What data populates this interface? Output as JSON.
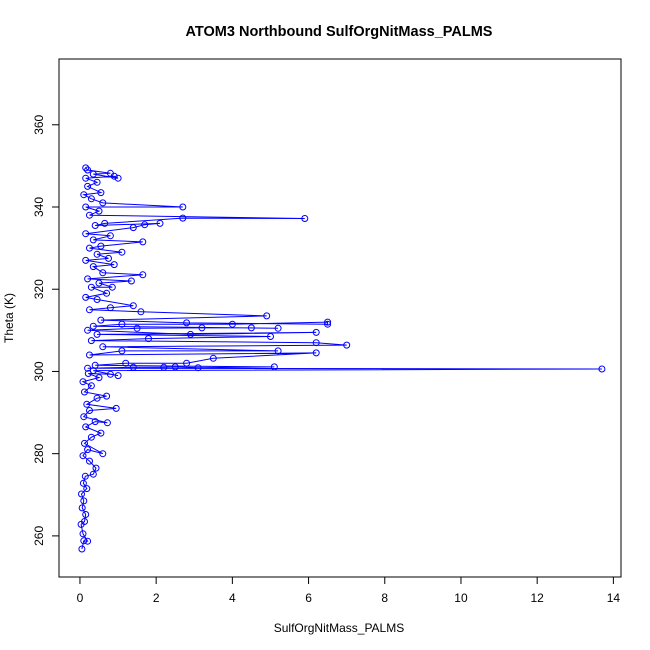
{
  "chart_data": {
    "type": "line",
    "title": "ATOM3 Northbound SulfOrgNitMass_PALMS",
    "xlabel": "SulfOrgNitMass_PALMS",
    "ylabel": "Theta (K)",
    "xlim": [
      -0.55,
      14.2
    ],
    "ylim": [
      250,
      376
    ],
    "x_ticks": [
      0,
      2,
      4,
      6,
      8,
      10,
      12,
      14
    ],
    "y_ticks": [
      260,
      280,
      300,
      320,
      340,
      360
    ],
    "grid": false,
    "legend": "none",
    "series_color": "#0000ff",
    "marker": "open-circle",
    "series": [
      {
        "points": [
          [
            0.05,
            256.8
          ],
          [
            0.1,
            258.8
          ],
          [
            0.2,
            258.7
          ],
          [
            0.08,
            260.5
          ],
          [
            0.03,
            262.8
          ],
          [
            0.12,
            263.5
          ],
          [
            0.15,
            265.2
          ],
          [
            0.06,
            266.8
          ],
          [
            0.1,
            268.5
          ],
          [
            0.04,
            270.2
          ],
          [
            0.18,
            271.5
          ],
          [
            0.09,
            272.8
          ],
          [
            0.14,
            274.5
          ],
          [
            0.35,
            275.0
          ],
          [
            0.42,
            276.5
          ],
          [
            0.25,
            278.2
          ],
          [
            0.08,
            279.5
          ],
          [
            0.2,
            281.0
          ],
          [
            0.6,
            280.0
          ],
          [
            0.12,
            282.5
          ],
          [
            0.3,
            284.0
          ],
          [
            0.55,
            285.0
          ],
          [
            0.15,
            286.5
          ],
          [
            0.4,
            287.8
          ],
          [
            0.72,
            287.5
          ],
          [
            0.1,
            289.0
          ],
          [
            0.25,
            290.5
          ],
          [
            0.95,
            291.0
          ],
          [
            0.18,
            292.0
          ],
          [
            0.45,
            293.5
          ],
          [
            0.7,
            294.0
          ],
          [
            0.12,
            295.0
          ],
          [
            0.3,
            296.5
          ],
          [
            0.08,
            297.5
          ],
          [
            0.5,
            298.5
          ],
          [
            0.22,
            299.5
          ],
          [
            0.8,
            299.3
          ],
          [
            1.0,
            299.0
          ],
          [
            0.35,
            300.2
          ],
          [
            13.7,
            300.6
          ],
          [
            0.2,
            300.8
          ],
          [
            1.4,
            301.0
          ],
          [
            2.2,
            301.0
          ],
          [
            2.5,
            301.1
          ],
          [
            3.1,
            300.9
          ],
          [
            5.1,
            301.1
          ],
          [
            0.4,
            301.5
          ],
          [
            1.2,
            302.0
          ],
          [
            2.8,
            302.0
          ],
          [
            3.5,
            303.2
          ],
          [
            6.2,
            304.5
          ],
          [
            0.25,
            304.0
          ],
          [
            1.1,
            305.0
          ],
          [
            5.2,
            305.0
          ],
          [
            0.6,
            306.0
          ],
          [
            7.0,
            306.4
          ],
          [
            6.2,
            307.0
          ],
          [
            0.3,
            307.5
          ],
          [
            1.8,
            308.0
          ],
          [
            5.0,
            308.5
          ],
          [
            0.45,
            309.0
          ],
          [
            6.2,
            309.5
          ],
          [
            2.9,
            309.0
          ],
          [
            0.2,
            310.0
          ],
          [
            1.5,
            310.5
          ],
          [
            3.2,
            310.6
          ],
          [
            4.5,
            310.6
          ],
          [
            5.2,
            310.5
          ],
          [
            0.35,
            311.0
          ],
          [
            1.1,
            311.5
          ],
          [
            4.0,
            311.5
          ],
          [
            6.5,
            312.0
          ],
          [
            6.5,
            311.5
          ],
          [
            2.8,
            311.8
          ],
          [
            0.55,
            312.5
          ],
          [
            4.9,
            313.5
          ],
          [
            1.6,
            314.5
          ],
          [
            0.25,
            315.0
          ],
          [
            0.8,
            315.5
          ],
          [
            1.4,
            316.0
          ],
          [
            0.45,
            317.5
          ],
          [
            0.15,
            318.0
          ],
          [
            0.7,
            319.0
          ],
          [
            0.3,
            320.5
          ],
          [
            0.85,
            320.5
          ],
          [
            0.5,
            321.5
          ],
          [
            1.35,
            322.0
          ],
          [
            0.2,
            322.5
          ],
          [
            1.65,
            323.5
          ],
          [
            0.6,
            324.0
          ],
          [
            0.35,
            325.5
          ],
          [
            0.9,
            326.0
          ],
          [
            0.15,
            327.0
          ],
          [
            0.75,
            327.5
          ],
          [
            0.45,
            328.5
          ],
          [
            1.1,
            329.0
          ],
          [
            0.25,
            330.0
          ],
          [
            0.55,
            330.5
          ],
          [
            1.65,
            331.5
          ],
          [
            0.35,
            332.0
          ],
          [
            0.8,
            333.0
          ],
          [
            0.15,
            333.5
          ],
          [
            1.4,
            335.0
          ],
          [
            1.7,
            335.7
          ],
          [
            2.1,
            336.0
          ],
          [
            0.4,
            335.5
          ],
          [
            0.65,
            336.0
          ],
          [
            2.7,
            337.3
          ],
          [
            5.9,
            337.2
          ],
          [
            0.25,
            338.0
          ],
          [
            0.5,
            339.0
          ],
          [
            0.15,
            340.0
          ],
          [
            2.7,
            340.0
          ],
          [
            0.6,
            341.0
          ],
          [
            0.3,
            342.0
          ],
          [
            0.1,
            343.0
          ],
          [
            0.55,
            343.5
          ],
          [
            0.2,
            345.0
          ],
          [
            0.45,
            346.0
          ],
          [
            0.15,
            347.0
          ],
          [
            0.9,
            347.5
          ],
          [
            1.0,
            347.0
          ],
          [
            0.35,
            348.0
          ],
          [
            0.8,
            348.2
          ],
          [
            0.2,
            349.0
          ],
          [
            0.15,
            349.5
          ]
        ]
      }
    ]
  }
}
